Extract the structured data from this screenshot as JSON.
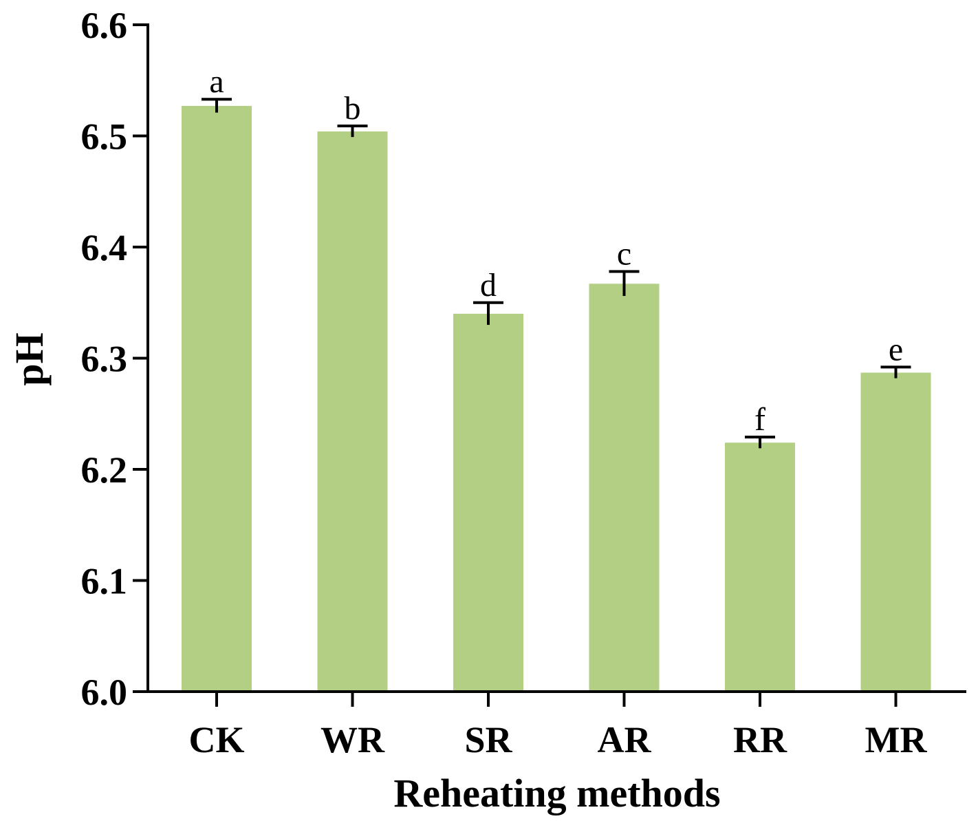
{
  "chart_data": {
    "type": "bar",
    "xlabel": "Reheating methods",
    "ylabel": "pH",
    "ylim": [
      6.0,
      6.6
    ],
    "yticks": [
      "6.0",
      "6.1",
      "6.2",
      "6.3",
      "6.4",
      "6.5",
      "6.6"
    ],
    "categories": [
      "CK",
      "WR",
      "SR",
      "AR",
      "RR",
      "MR"
    ],
    "values": [
      6.527,
      6.504,
      6.34,
      6.367,
      6.224,
      6.287
    ],
    "errors": [
      0.006,
      0.005,
      0.01,
      0.011,
      0.005,
      0.005
    ],
    "significance": [
      "a",
      "b",
      "d",
      "c",
      "f",
      "e"
    ],
    "bar_color": "#b2cf84",
    "grid": false,
    "legend": "none"
  }
}
